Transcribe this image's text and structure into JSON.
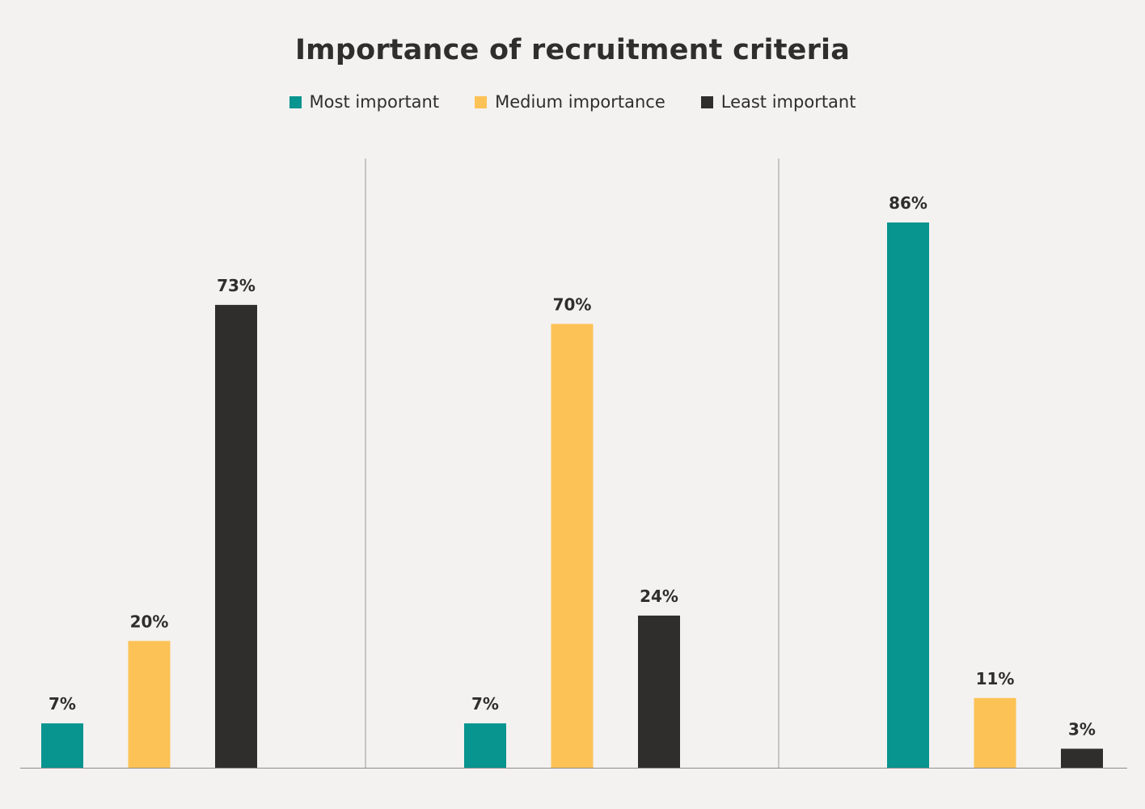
{
  "chart_data": {
    "type": "bar",
    "title": "Importance of recruitment criteria",
    "xlabel": "",
    "ylabel": "",
    "ylim": [
      0,
      100
    ],
    "grid": false,
    "legend_position": "top-center",
    "groups": 3,
    "series": [
      {
        "name": "Most important",
        "color": "#08948f",
        "values": [
          7,
          7,
          86
        ],
        "labels": [
          "7%",
          "7%",
          "86%"
        ]
      },
      {
        "name": "Medium importance",
        "color": "#fdc256",
        "values": [
          20,
          70,
          11
        ],
        "labels": [
          "20%",
          "70%",
          "11%"
        ]
      },
      {
        "name": "Least important",
        "color": "#2f2e2c",
        "values": [
          73,
          24,
          3
        ],
        "labels": [
          "73%",
          "24%",
          "3%"
        ]
      }
    ]
  }
}
